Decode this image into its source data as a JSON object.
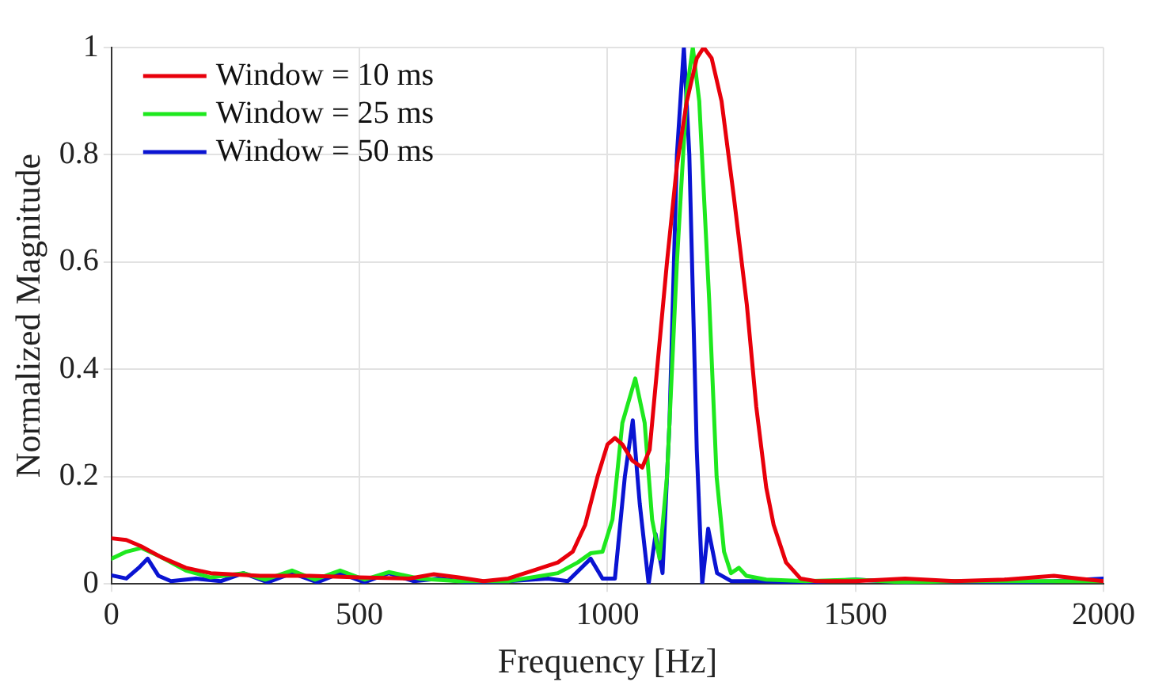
{
  "chart_data": {
    "type": "line",
    "xlabel": "Frequency [Hz]",
    "ylabel": "Normalized Magnitude",
    "xlim": [
      0,
      2000
    ],
    "xticks": [
      0,
      500,
      1000,
      1500,
      2000
    ],
    "ylim": [
      0,
      1
    ],
    "yticks": [
      0,
      0.2,
      0.4,
      0.6,
      0.8,
      1
    ],
    "grid": true,
    "legend": "top left",
    "marker": "none",
    "line_style": "solid",
    "series": [
      {
        "name": "Window = 10 ms",
        "color": "#e8000b",
        "x": [
          0,
          30,
          60,
          100,
          150,
          200,
          300,
          400,
          500,
          600,
          650,
          700,
          750,
          800,
          850,
          900,
          930,
          955,
          980,
          1000,
          1015,
          1030,
          1050,
          1070,
          1085,
          1100,
          1120,
          1140,
          1160,
          1180,
          1194,
          1210,
          1230,
          1255,
          1281,
          1300,
          1320,
          1335,
          1360,
          1389,
          1420,
          1500,
          1600,
          1700,
          1800,
          1900,
          1950,
          2000
        ],
        "values": [
          0.085,
          0.082,
          0.07,
          0.05,
          0.03,
          0.02,
          0.015,
          0.015,
          0.012,
          0.01,
          0.018,
          0.012,
          0.005,
          0.01,
          0.025,
          0.04,
          0.06,
          0.11,
          0.2,
          0.26,
          0.272,
          0.26,
          0.23,
          0.217,
          0.25,
          0.4,
          0.6,
          0.78,
          0.9,
          0.98,
          1,
          0.98,
          0.9,
          0.72,
          0.52,
          0.33,
          0.18,
          0.11,
          0.04,
          0.01,
          0.005,
          0.005,
          0.01,
          0.005,
          0.008,
          0.015,
          0.01,
          0.005
        ]
      },
      {
        "name": "Window = 25 ms",
        "color": "#1ee81e",
        "x": [
          0,
          30,
          60,
          100,
          150,
          200,
          266,
          310,
          364,
          410,
          461,
          510,
          559,
          620,
          700,
          800,
          900,
          940,
          966,
          990,
          1010,
          1030,
          1056,
          1075,
          1090,
          1105,
          1120,
          1140,
          1160,
          1172,
          1185,
          1205,
          1220,
          1235,
          1249,
          1265,
          1280,
          1320,
          1400,
          1500,
          1600,
          1700,
          1800,
          1900,
          2000
        ],
        "values": [
          0.047,
          0.06,
          0.067,
          0.05,
          0.025,
          0.012,
          0.02,
          0.008,
          0.025,
          0.008,
          0.025,
          0.008,
          0.022,
          0.01,
          0.005,
          0.005,
          0.02,
          0.04,
          0.057,
          0.06,
          0.12,
          0.3,
          0.383,
          0.3,
          0.12,
          0.047,
          0.2,
          0.6,
          0.92,
          1,
          0.9,
          0.53,
          0.2,
          0.06,
          0.02,
          0.03,
          0.015,
          0.008,
          0.005,
          0.008,
          0.003,
          0.005,
          0.005,
          0.005,
          0.005
        ]
      },
      {
        "name": "Window = 50 ms",
        "color": "#0a14d2",
        "x": [
          0,
          30,
          55,
          73,
          95,
          120,
          170,
          220,
          266,
          315,
          364,
          415,
          461,
          510,
          559,
          610,
          660,
          720,
          800,
          880,
          920,
          966,
          990,
          1015,
          1035,
          1051,
          1065,
          1083,
          1097,
          1111,
          1125,
          1140,
          1154,
          1165,
          1180,
          1191,
          1203,
          1221,
          1250,
          1300,
          1400,
          1500,
          1600,
          1700,
          1800,
          1900,
          2000
        ],
        "values": [
          0.016,
          0.01,
          0.03,
          0.047,
          0.015,
          0.005,
          0.01,
          0.005,
          0.02,
          0.003,
          0.02,
          0.003,
          0.02,
          0.003,
          0.02,
          0.005,
          0.01,
          0.003,
          0.005,
          0.01,
          0.005,
          0.047,
          0.01,
          0.01,
          0.2,
          0.305,
          0.15,
          0,
          0.093,
          0.02,
          0.3,
          0.8,
          1,
          0.8,
          0.25,
          0,
          0.103,
          0.02,
          0.005,
          0.005,
          0.003,
          0.008,
          0.003,
          0.005,
          0.003,
          0.005,
          0.01
        ]
      }
    ]
  }
}
